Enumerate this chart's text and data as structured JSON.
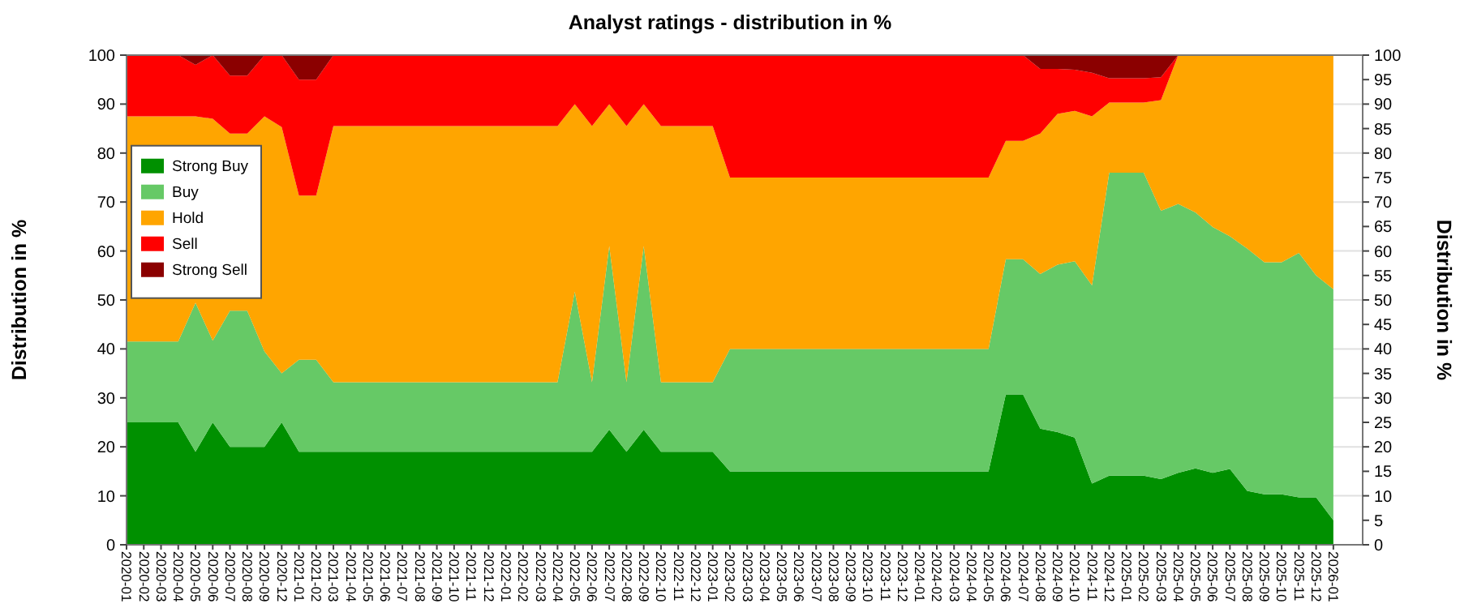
{
  "chart_data": {
    "type": "area",
    "stacked": true,
    "title": "Analyst ratings - distribution in %",
    "ylabel": "Distribution in %",
    "y2label": "Distribution in %",
    "categories": [
      "2020-01",
      "2020-02",
      "2020-03",
      "2020-04",
      "2020-05",
      "2020-06",
      "2020-07",
      "2020-08",
      "2020-09",
      "2020-12",
      "2021-01",
      "2021-02",
      "2021-03",
      "2021-04",
      "2021-05",
      "2021-06",
      "2021-07",
      "2021-08",
      "2021-09",
      "2021-10",
      "2021-11",
      "2021-12",
      "2022-01",
      "2022-02",
      "2022-03",
      "2022-04",
      "2022-05",
      "2022-06",
      "2022-07",
      "2022-08",
      "2022-09",
      "2022-10",
      "2022-11",
      "2022-12",
      "2023-01",
      "2023-02",
      "2023-03",
      "2023-04",
      "2023-05",
      "2023-06",
      "2023-07",
      "2023-08",
      "2023-09",
      "2023-10",
      "2023-11",
      "2023-12",
      "2024-01",
      "2024-02",
      "2024-03",
      "2024-04",
      "2024-05",
      "2024-06",
      "2024-07",
      "2024-08",
      "2024-09",
      "2024-10",
      "2024-11",
      "2024-12",
      "2025-01",
      "2025-02",
      "2025-03",
      "2025-04",
      "2025-05",
      "2025-06",
      "2025-07",
      "2025-08",
      "2025-09",
      "2025-10",
      "2025-11",
      "2025-12",
      "2026-01"
    ],
    "series": [
      {
        "name": "Strong Buy",
        "color": "#009000",
        "values": [
          25,
          25,
          25,
          25,
          19,
          25,
          20,
          20,
          20,
          25,
          19,
          19,
          19,
          19,
          19,
          19,
          19,
          19,
          19,
          19,
          19,
          19,
          19,
          19,
          19,
          19,
          19,
          19,
          23.5,
          19,
          23.5,
          19,
          19,
          19,
          19,
          15,
          15,
          15,
          15,
          15,
          15,
          15,
          15,
          15,
          15,
          15,
          15,
          15,
          15,
          15,
          15,
          30.7,
          30.7,
          23.7,
          23,
          21.9,
          12.5,
          14.1,
          14.1,
          14.1,
          13.4,
          14.7,
          15.6,
          14.7,
          15.5,
          11,
          10.3,
          10.3,
          9.7,
          9.7,
          5
        ]
      },
      {
        "name": "Buy",
        "color": "#66c966",
        "values": [
          16.5,
          16.5,
          16.5,
          16.5,
          30.4,
          16.7,
          27.8,
          27.8,
          19.5,
          10,
          18.8,
          18.8,
          14.2,
          14.2,
          14.2,
          14.2,
          14.2,
          14.2,
          14.2,
          14.2,
          14.2,
          14.2,
          14.2,
          14.2,
          14.2,
          14.2,
          32.7,
          14.2,
          37.5,
          14.2,
          37.5,
          14.2,
          14.2,
          14.2,
          14.2,
          25,
          25,
          25,
          25,
          25,
          25,
          25,
          25,
          25,
          25,
          25,
          25,
          25,
          25,
          25,
          25,
          27.6,
          27.6,
          31.6,
          34.2,
          36,
          40.5,
          61.9,
          61.9,
          61.9,
          54.8,
          54.9,
          52.3,
          50.2,
          47.5,
          49.5,
          47.4,
          47.4,
          49.9,
          45.3,
          47.2
        ]
      },
      {
        "name": "Hold",
        "color": "#ffa500",
        "values": [
          46,
          46,
          46,
          46,
          38.1,
          45.3,
          36.2,
          36.2,
          48,
          50.3,
          33.5,
          33.5,
          52.3,
          52.3,
          52.3,
          52.3,
          52.3,
          52.3,
          52.3,
          52.3,
          52.3,
          52.3,
          52.3,
          52.3,
          52.3,
          52.3,
          38.3,
          52.3,
          29,
          52.3,
          29,
          52.3,
          52.3,
          52.3,
          52.3,
          35,
          35,
          35,
          35,
          35,
          35,
          35,
          35,
          35,
          35,
          35,
          35,
          35,
          35,
          35,
          35,
          24.2,
          24.2,
          28.7,
          30.8,
          30.7,
          34.5,
          14.3,
          14.3,
          14.3,
          22.6,
          30.4,
          32.1,
          35.1,
          37,
          39.5,
          42.3,
          42.3,
          40.4,
          45,
          47.8
        ]
      },
      {
        "name": "Sell",
        "color": "#ff0000",
        "values": [
          12.5,
          12.5,
          12.5,
          12.5,
          10.5,
          13,
          11.8,
          11.8,
          12.5,
          14.7,
          23.7,
          23.7,
          14.5,
          14.5,
          14.5,
          14.5,
          14.5,
          14.5,
          14.5,
          14.5,
          14.5,
          14.5,
          14.5,
          14.5,
          14.5,
          14.5,
          10,
          14.5,
          10,
          14.5,
          10,
          14.5,
          14.5,
          14.5,
          14.5,
          25,
          25,
          25,
          25,
          25,
          25,
          25,
          25,
          25,
          25,
          25,
          25,
          25,
          25,
          25,
          25,
          17.5,
          17.5,
          13.2,
          9.2,
          8.4,
          8.9,
          5,
          5,
          5,
          4.7,
          0,
          0,
          0,
          0,
          0,
          0,
          0,
          0,
          0,
          0
        ]
      },
      {
        "name": "Strong Sell",
        "color": "#8b0000",
        "values": [
          0,
          0,
          0,
          0,
          2,
          0,
          4.2,
          4.2,
          0,
          0,
          5,
          5,
          0,
          0,
          0,
          0,
          0,
          0,
          0,
          0,
          0,
          0,
          0,
          0,
          0,
          0,
          0,
          0,
          0,
          0,
          0,
          0,
          0,
          0,
          0,
          0,
          0,
          0,
          0,
          0,
          0,
          0,
          0,
          0,
          0,
          0,
          0,
          0,
          0,
          0,
          0,
          0,
          0,
          2.8,
          2.8,
          3,
          3.6,
          4.7,
          4.7,
          4.7,
          4.5,
          0,
          0,
          0,
          0,
          0,
          0,
          0,
          0,
          0,
          0
        ]
      }
    ],
    "ylim": [
      0,
      100
    ],
    "yticks": [
      0,
      10,
      20,
      30,
      40,
      50,
      60,
      70,
      80,
      90,
      100
    ],
    "y2lim": [
      0,
      100
    ],
    "y2ticks": [
      0,
      5,
      10,
      15,
      20,
      25,
      30,
      35,
      40,
      45,
      50,
      55,
      60,
      65,
      70,
      75,
      80,
      85,
      90,
      95,
      100
    ],
    "grid": "y",
    "legend": "top left"
  }
}
